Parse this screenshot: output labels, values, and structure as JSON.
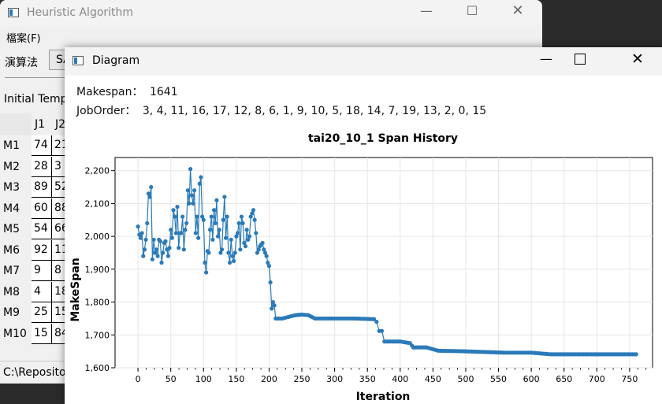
{
  "bg_window": {
    "title": "Heuristic Algorithm",
    "menu_file": "檔案(F)",
    "algorithm_label": "演算法",
    "algorithm_value": "SA",
    "initial_temp_label": "Initial Temp",
    "col_headers": [
      "J1",
      "J2"
    ],
    "rows": [
      {
        "label": "M1",
        "c1": "74",
        "c2": "21"
      },
      {
        "label": "M2",
        "c1": "28",
        "c2": "3"
      },
      {
        "label": "M3",
        "c1": "89",
        "c2": "52"
      },
      {
        "label": "M4",
        "c1": "60",
        "c2": "88"
      },
      {
        "label": "M5",
        "c1": "54",
        "c2": "66"
      },
      {
        "label": "M6",
        "c1": "92",
        "c2": "11"
      },
      {
        "label": "M7",
        "c1": "9",
        "c2": "8"
      },
      {
        "label": "M8",
        "c1": "4",
        "c2": "18"
      },
      {
        "label": "M9",
        "c1": "25",
        "c2": "15"
      },
      {
        "label": "M10",
        "c1": "15",
        "c2": "84"
      }
    ],
    "status_path": "C:\\Reposito"
  },
  "diagram_window": {
    "title": "Diagram",
    "makespan_label": "Makespan：",
    "makespan_value": "1641",
    "joborder_label": "JobOrder：",
    "joborder_value": "3, 4, 11, 16, 17, 12, 8, 6, 1, 9, 10, 5, 18, 14, 7, 19, 13, 2, 0, 15"
  },
  "chart_data": {
    "type": "line",
    "title": "tai20_10_1 Span History",
    "xlabel": "Iteration",
    "ylabel": "MakeSpan",
    "xlim": [
      -35,
      785
    ],
    "ylim": [
      1600,
      2240
    ],
    "x_ticks": [
      0,
      50,
      100,
      150,
      200,
      250,
      300,
      350,
      400,
      450,
      500,
      550,
      600,
      650,
      700,
      750
    ],
    "y_ticks": [
      1600,
      1700,
      1800,
      1900,
      2000,
      2100,
      2200
    ],
    "y_tick_labels": [
      "1,600",
      "1,700",
      "1,800",
      "1,900",
      "2,000",
      "2,100",
      "2,200"
    ],
    "grid": true,
    "color": "#2a7ab9",
    "series": [
      {
        "x": [
          0,
          2,
          4,
          6,
          8,
          10,
          12,
          14,
          16,
          18,
          20,
          22,
          24,
          26,
          28,
          30,
          32,
          34,
          36,
          38,
          40,
          42,
          44,
          46,
          48,
          50,
          52,
          54,
          56,
          58,
          60,
          62,
          64,
          66,
          68,
          70,
          72,
          74,
          76,
          78,
          80,
          82,
          84,
          86,
          88,
          90,
          92,
          94,
          96,
          98,
          100,
          102,
          104,
          106,
          108,
          110,
          112,
          114,
          116,
          118,
          120,
          122,
          124,
          126,
          128,
          130,
          132,
          134,
          136,
          138,
          140,
          142,
          144,
          146,
          148,
          150,
          152,
          154,
          156,
          158,
          160,
          162,
          164,
          166,
          168,
          170,
          172,
          174,
          176,
          178,
          180,
          182,
          184,
          186,
          188,
          190,
          192,
          194,
          196,
          198,
          200,
          202,
          204,
          206,
          208,
          210,
          215,
          220,
          230,
          240,
          250,
          260,
          265,
          270,
          300,
          330,
          360,
          364,
          368,
          372,
          376,
          400,
          415,
          420,
          440,
          458,
          480,
          500,
          530,
          560,
          600,
          630,
          650,
          700,
          760
        ],
        "y": [
          2030,
          2005,
          1995,
          2010,
          1940,
          1960,
          1990,
          2040,
          2130,
          2120,
          2150,
          1930,
          1990,
          1950,
          1960,
          1940,
          1990,
          1985,
          1920,
          1950,
          1980,
          1985,
          1960,
          1940,
          1965,
          2020,
          1995,
          2080,
          2060,
          2010,
          2090,
          1965,
          2010,
          2010,
          2060,
          1960,
          2020,
          2040,
          2140,
          2100,
          2205,
          2125,
          2100,
          2140,
          2010,
          2060,
          1995,
          2160,
          2180,
          2060,
          2050,
          1920,
          1890,
          1955,
          1950,
          2020,
          2060,
          1990,
          2080,
          2040,
          2110,
          2000,
          2020,
          1950,
          1960,
          2050,
          2120,
          1995,
          2060,
          1950,
          1920,
          1990,
          1940,
          1925,
          1950,
          2000,
          2010,
          2040,
          1960,
          2060,
          2040,
          1980,
          1970,
          2020,
          1990,
          2000,
          2060,
          2070,
          2080,
          2050,
          2010,
          1950,
          1960,
          1970,
          1975,
          1980,
          1960,
          1950,
          1940,
          1920,
          1910,
          1860,
          1780,
          1800,
          1790,
          1750,
          1750,
          1750,
          1755,
          1760,
          1762,
          1760,
          1755,
          1750,
          1750,
          1750,
          1748,
          1740,
          1712,
          1712,
          1680,
          1680,
          1675,
          1662,
          1662,
          1652,
          1651,
          1650,
          1648,
          1646,
          1646,
          1641,
          1641,
          1641,
          1641
        ]
      }
    ]
  }
}
